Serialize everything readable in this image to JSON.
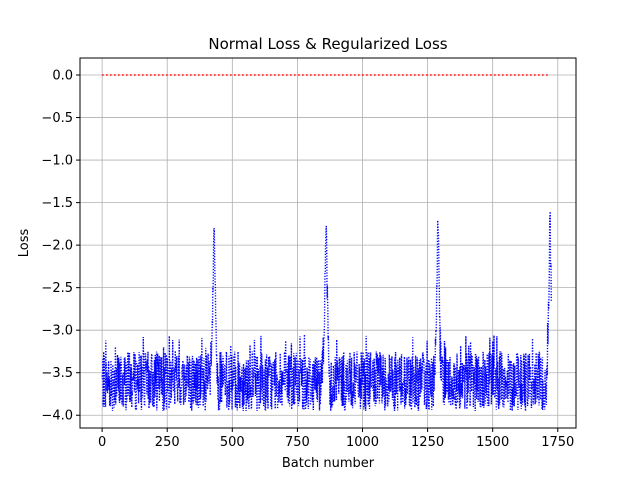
{
  "chart_data": {
    "type": "line",
    "title": "Normal Loss & Regularized Loss",
    "xlabel": "Batch number",
    "ylabel": "Loss",
    "xlim": [
      -85,
      1820
    ],
    "ylim": [
      -4.15,
      0.2
    ],
    "xticks": [
      0,
      250,
      500,
      750,
      1000,
      1250,
      1500,
      1750
    ],
    "xtick_labels": [
      "0",
      "250",
      "500",
      "750",
      "1000",
      "1250",
      "1500",
      "1750"
    ],
    "yticks": [
      0.0,
      -0.5,
      -1.0,
      -1.5,
      -2.0,
      -2.5,
      -3.0,
      -3.5,
      -4.0
    ],
    "ytick_labels": [
      "0.0",
      "−0.5",
      "−1.0",
      "−1.5",
      "−2.0",
      "−2.5",
      "−3.0",
      "−3.5",
      "−4.0"
    ],
    "grid": true,
    "legend": false,
    "series": [
      {
        "color": "#ff0000",
        "style": "dotted",
        "description_values": "approximately constant at 0.0 for batches 0 to 1720",
        "x": [
          0,
          1720
        ],
        "y": [
          0.0,
          0.0
        ]
      },
      {
        "color": "#0000ff",
        "style": "dotted",
        "description_values": "noisy between about -4.0 and -3.3 with spikes to about -1.8 near batches 430, 860, 1290 and 1720",
        "x_range": [
          0,
          1725
        ],
        "baseline_min": -3.95,
        "baseline_max": -3.25,
        "spikes": [
          {
            "x": 430,
            "y": -1.8
          },
          {
            "x": 860,
            "y": -1.8
          },
          {
            "x": 1290,
            "y": -1.8
          },
          {
            "x": 1720,
            "y": -1.8
          }
        ]
      }
    ]
  }
}
